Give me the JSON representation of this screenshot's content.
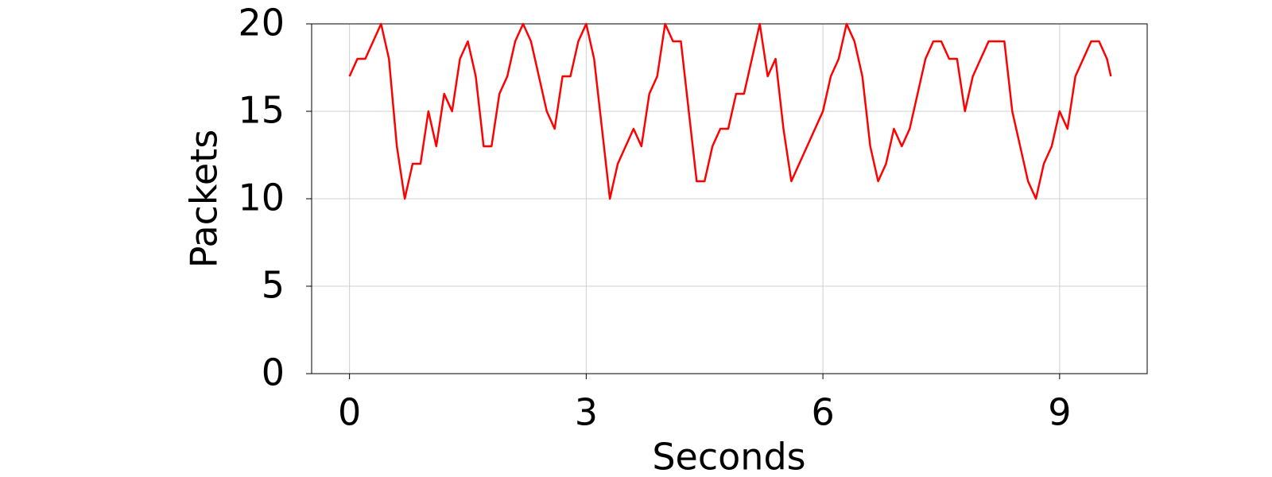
{
  "chart_data": {
    "type": "line",
    "x_label": "Seconds",
    "y_label": "Packets",
    "x": [
      0,
      0.1,
      0.2,
      0.3,
      0.4,
      0.5,
      0.6,
      0.7,
      0.8,
      0.9,
      1.0,
      1.1,
      1.2,
      1.3,
      1.4,
      1.5,
      1.6,
      1.7,
      1.8,
      1.9,
      2.0,
      2.1,
      2.2,
      2.3,
      2.4,
      2.5,
      2.6,
      2.7,
      2.8,
      2.9,
      3.0,
      3.1,
      3.2,
      3.3,
      3.4,
      3.5,
      3.6,
      3.7,
      3.8,
      3.9,
      4.0,
      4.1,
      4.2,
      4.3,
      4.4,
      4.5,
      4.6,
      4.7,
      4.8,
      4.9,
      5.0,
      5.1,
      5.2,
      5.3,
      5.4,
      5.5,
      5.6,
      5.7,
      5.8,
      5.9,
      6.0,
      6.1,
      6.2,
      6.3,
      6.4,
      6.5,
      6.6,
      6.7,
      6.8,
      6.9,
      7.0,
      7.1,
      7.2,
      7.3,
      7.4,
      7.5,
      7.6,
      7.7,
      7.8,
      7.9,
      8.0,
      8.1,
      8.2,
      8.3,
      8.4,
      8.5,
      8.6,
      8.7,
      8.8,
      8.9,
      9.0,
      9.1,
      9.2,
      9.3,
      9.4,
      9.5,
      9.6,
      9.65
    ],
    "values": [
      17,
      18,
      18,
      19,
      20,
      18,
      13,
      10,
      12,
      12,
      15,
      13,
      16,
      15,
      18,
      19,
      17,
      13,
      13,
      16,
      17,
      19,
      20,
      19,
      17,
      15,
      14,
      17,
      17,
      19,
      20,
      18,
      14,
      10,
      12,
      13,
      14,
      13,
      16,
      17,
      20,
      19,
      19,
      15,
      11,
      11,
      13,
      14,
      14,
      16,
      16,
      18,
      20,
      17,
      18,
      14,
      11,
      12,
      13,
      14,
      15,
      17,
      18,
      20,
      19,
      17,
      13,
      11,
      12,
      14,
      13,
      14,
      16,
      18,
      19,
      19,
      18,
      18,
      15,
      17,
      18,
      19,
      19,
      19,
      15,
      13,
      11,
      10,
      12,
      13,
      15,
      14,
      17,
      18,
      19,
      19,
      18,
      17
    ],
    "color": "#ff0000",
    "xlim": [
      -0.48,
      10.11
    ],
    "xticks": [
      0,
      3,
      6,
      9
    ],
    "ylim": [
      0,
      20
    ],
    "yticks": [
      0,
      5,
      10,
      15,
      20
    ],
    "grid": true
  }
}
